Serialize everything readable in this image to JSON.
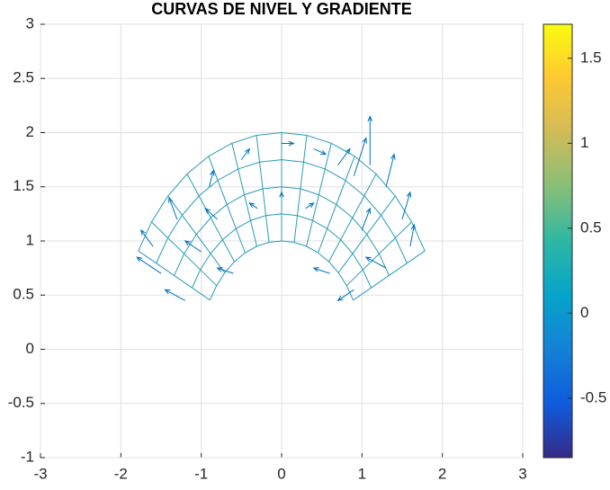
{
  "chart_data": {
    "type": "quiver",
    "title": "CURVAS DE NIVEL Y GRADIENTE",
    "xlim": [
      -3,
      3
    ],
    "ylim": [
      -1,
      3
    ],
    "xticks": [
      -3,
      -2,
      -1,
      0,
      1,
      2,
      3
    ],
    "yticks": [
      -1,
      -0.5,
      0,
      0.5,
      1,
      1.5,
      2,
      2.5,
      3
    ],
    "grid": true,
    "arrow_color": "#0072bd",
    "mesh_color": "#2a9bb8",
    "mesh": {
      "radii": [
        1,
        1.25,
        1.5,
        1.75,
        2
      ],
      "angles": [
        27,
        36,
        45,
        54,
        63,
        72,
        81,
        90,
        99,
        108,
        117,
        126,
        135,
        144,
        153
      ]
    },
    "x": [
      -1.2,
      -1.5,
      -1.6,
      -1.3,
      -0.9,
      -0.5,
      0,
      0.4,
      0.7,
      0.9,
      1.1,
      1.3,
      1.5,
      1.6,
      1.3,
      0.9,
      0.6,
      -0.6,
      -0.3,
      0.3,
      -1.0,
      1.0,
      0,
      -0.8
    ],
    "y": [
      0.45,
      0.7,
      0.95,
      1.2,
      1.5,
      1.75,
      1.9,
      1.85,
      1.7,
      1.6,
      1.7,
      1.5,
      1.2,
      0.95,
      0.75,
      0.55,
      0.7,
      0.7,
      1.3,
      1.3,
      0.9,
      1.1,
      1.4,
      1.2
    ],
    "u": [
      -0.25,
      -0.3,
      -0.15,
      -0.1,
      0.05,
      0.1,
      0.15,
      0.15,
      0.15,
      0.15,
      0,
      0.1,
      0.1,
      0.05,
      -0.25,
      -0.2,
      -0.2,
      -0.2,
      -0.1,
      0.1,
      -0.2,
      0.1,
      0,
      -0.15
    ],
    "v": [
      0.1,
      0.15,
      0.15,
      0.2,
      0.15,
      0.1,
      0,
      -0.05,
      0.15,
      0.35,
      0.45,
      0.3,
      0.25,
      0.2,
      0.1,
      -0.1,
      0.05,
      0.05,
      0.05,
      0.05,
      0.1,
      0.2,
      0.05,
      0.1
    ],
    "colorbar": {
      "clim": [
        -0.85,
        1.7
      ],
      "ticks": [
        -0.5,
        0,
        0.5,
        1,
        1.5
      ],
      "colormap": [
        "#352a87",
        "#0f5cdd",
        "#1481d6",
        "#06a4ca",
        "#2eb7a4",
        "#87bf77",
        "#d1bb59",
        "#fec832",
        "#f9fb0e"
      ]
    }
  }
}
